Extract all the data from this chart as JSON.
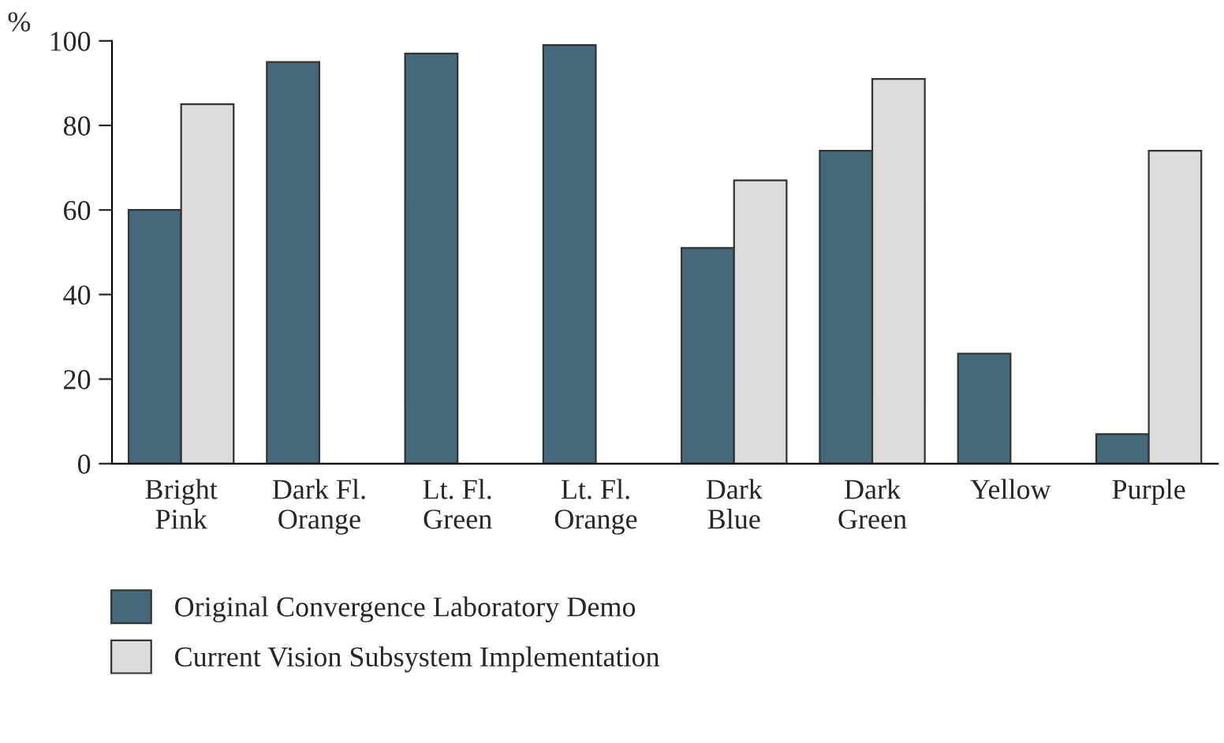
{
  "chart_data": {
    "type": "bar",
    "ylabel": "%",
    "categories": [
      "Bright\nPink",
      "Dark Fl.\nOrange",
      "Lt. Fl.\nGreen",
      "Lt. Fl.\nOrange",
      "Dark\nBlue",
      "Dark\nGreen",
      "Yellow",
      "Purple"
    ],
    "series": [
      {
        "name": "Original Convergence Laboratory Demo",
        "color": "#45687a",
        "values": [
          60,
          95,
          97,
          99,
          51,
          74,
          26,
          7
        ]
      },
      {
        "name": "Current Vision Subsystem Implementation",
        "color": "#dcdcdc",
        "values": [
          85,
          null,
          null,
          null,
          67,
          91,
          null,
          74
        ]
      }
    ],
    "ylim": [
      0,
      100
    ],
    "yticks": [
      0,
      20,
      40,
      60,
      80,
      100
    ],
    "grid": false,
    "legend": "bottom left"
  }
}
